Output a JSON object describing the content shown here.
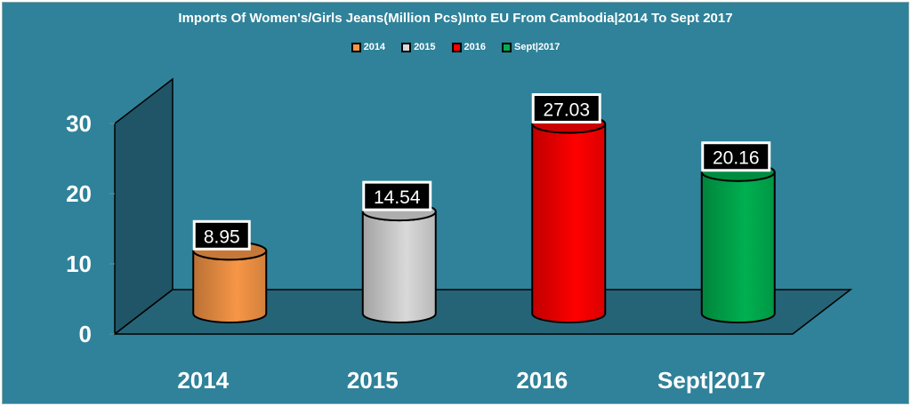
{
  "chart_data": {
    "type": "bar",
    "style": "3d-cylinder",
    "title": "Imports Of Women's/Girls Jeans(Million Pcs)Into EU From Cambodia|2014 To Sept 2017",
    "categories": [
      "2014",
      "2015",
      "2016",
      "Sept|2017"
    ],
    "values": [
      8.95,
      14.54,
      27.03,
      20.16
    ],
    "data_labels": [
      "8.95",
      "14.54",
      "27.03",
      "20.16"
    ],
    "colors": [
      "#f79646",
      "#d9d9d9",
      "#ff0000",
      "#00b050"
    ],
    "legend": [
      "2014",
      "2015",
      "2016",
      "Sept|2017"
    ],
    "legend_position": "top",
    "yticks": [
      "0",
      "10",
      "20",
      "30"
    ],
    "ylim": [
      0,
      30
    ],
    "xlabel": "",
    "ylabel": "",
    "grid": false,
    "background": "#2f8299"
  }
}
